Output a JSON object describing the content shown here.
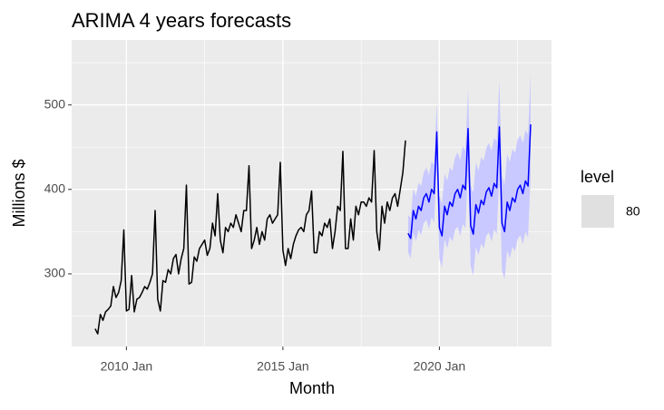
{
  "chart_data": {
    "type": "line",
    "title": "ARIMA 4 years forecasts",
    "x_label": "Month",
    "y_label": "Millions $",
    "x": [
      "2009 Jan",
      "2009 Feb",
      "2009 Mar",
      "2009 Apr",
      "2009 May",
      "2009 Jun",
      "2009 Jul",
      "2009 Aug",
      "2009 Sep",
      "2009 Oct",
      "2009 Nov",
      "2009 Dec",
      "2010 Jan",
      "2010 Feb",
      "2010 Mar",
      "2010 Apr",
      "2010 May",
      "2010 Jun",
      "2010 Jul",
      "2010 Aug",
      "2010 Sep",
      "2010 Oct",
      "2010 Nov",
      "2010 Dec",
      "2011 Jan",
      "2011 Feb",
      "2011 Mar",
      "2011 Apr",
      "2011 May",
      "2011 Jun",
      "2011 Jul",
      "2011 Aug",
      "2011 Sep",
      "2011 Oct",
      "2011 Nov",
      "2011 Dec",
      "2012 Jan",
      "2012 Feb",
      "2012 Mar",
      "2012 Apr",
      "2012 May",
      "2012 Jun",
      "2012 Jul",
      "2012 Aug",
      "2012 Sep",
      "2012 Oct",
      "2012 Nov",
      "2012 Dec",
      "2013 Jan",
      "2013 Feb",
      "2013 Mar",
      "2013 Apr",
      "2013 May",
      "2013 Jun",
      "2013 Jul",
      "2013 Aug",
      "2013 Sep",
      "2013 Oct",
      "2013 Nov",
      "2013 Dec",
      "2014 Jan",
      "2014 Feb",
      "2014 Mar",
      "2014 Apr",
      "2014 May",
      "2014 Jun",
      "2014 Jul",
      "2014 Aug",
      "2014 Sep",
      "2014 Oct",
      "2014 Nov",
      "2014 Dec",
      "2015 Jan",
      "2015 Feb",
      "2015 Mar",
      "2015 Apr",
      "2015 May",
      "2015 Jun",
      "2015 Jul",
      "2015 Aug",
      "2015 Sep",
      "2015 Oct",
      "2015 Nov",
      "2015 Dec",
      "2016 Jan",
      "2016 Feb",
      "2016 Mar",
      "2016 Apr",
      "2016 May",
      "2016 Jun",
      "2016 Jul",
      "2016 Aug",
      "2016 Sep",
      "2016 Oct",
      "2016 Nov",
      "2016 Dec",
      "2017 Jan",
      "2017 Feb",
      "2017 Mar",
      "2017 Apr",
      "2017 May",
      "2017 Jun",
      "2017 Jul",
      "2017 Aug",
      "2017 Sep",
      "2017 Oct",
      "2017 Nov",
      "2017 Dec",
      "2018 Jan",
      "2018 Feb",
      "2018 Mar",
      "2018 Apr",
      "2018 May",
      "2018 Jun",
      "2018 Jul",
      "2018 Aug",
      "2018 Sep",
      "2018 Oct",
      "2018 Nov",
      "2018 Dec",
      "2019 Jan",
      "2019 Feb",
      "2019 Mar",
      "2019 Apr",
      "2019 May",
      "2019 Jun",
      "2019 Jul",
      "2019 Aug",
      "2019 Sep",
      "2019 Oct",
      "2019 Nov",
      "2019 Dec",
      "2020 Jan",
      "2020 Feb",
      "2020 Mar",
      "2020 Apr",
      "2020 May",
      "2020 Jun",
      "2020 Jul",
      "2020 Aug",
      "2020 Sep",
      "2020 Oct",
      "2020 Nov",
      "2020 Dec",
      "2021 Jan",
      "2021 Feb",
      "2021 Mar",
      "2021 Apr",
      "2021 May",
      "2021 Jun",
      "2021 Jul",
      "2021 Aug",
      "2021 Sep",
      "2021 Oct",
      "2021 Nov",
      "2021 Dec",
      "2022 Jan",
      "2022 Feb",
      "2022 Mar",
      "2022 Apr",
      "2022 May",
      "2022 Jun",
      "2022 Jul",
      "2022 Aug",
      "2022 Sep",
      "2022 Oct",
      "2022 Nov",
      "2022 Dec"
    ],
    "series": [
      {
        "color": "#000000",
        "values": [
          235,
          229,
          252,
          245,
          255,
          258,
          262,
          285,
          272,
          278,
          292,
          352,
          256,
          258,
          298,
          255,
          270,
          272,
          278,
          285,
          282,
          290,
          300,
          375,
          270,
          256,
          292,
          290,
          305,
          300,
          318,
          323,
          300,
          318,
          330,
          405,
          288,
          290,
          320,
          315,
          330,
          335,
          340,
          322,
          330,
          360,
          345,
          395,
          340,
          325,
          355,
          350,
          360,
          355,
          370,
          360,
          350,
          375,
          375,
          428,
          330,
          340,
          355,
          335,
          350,
          340,
          365,
          370,
          360,
          365,
          370,
          432,
          328,
          310,
          330,
          318,
          335,
          345,
          352,
          355,
          350,
          370,
          375,
          398,
          325,
          325,
          350,
          345,
          360,
          355,
          365,
          330,
          350,
          380,
          375,
          445,
          330,
          330,
          365,
          340,
          380,
          370,
          385,
          385,
          380,
          390,
          385,
          446,
          350,
          328,
          380,
          360,
          385,
          375,
          390,
          395,
          380,
          400,
          420,
          458,
          null,
          null,
          null,
          null,
          null,
          null,
          null,
          null,
          null,
          null,
          null,
          null,
          null,
          null,
          null,
          null,
          null,
          null,
          null,
          null,
          null,
          null,
          null,
          null,
          null,
          null,
          null,
          null,
          null,
          null,
          null,
          null,
          null,
          null,
          null,
          null,
          null,
          null,
          null,
          null,
          null,
          null,
          null,
          null,
          null,
          null,
          null,
          null
        ]
      },
      {
        "color": "#0000ff",
        "band_color": "#c9c9ff",
        "values": [
          null,
          null,
          null,
          null,
          null,
          null,
          null,
          null,
          null,
          null,
          null,
          null,
          null,
          null,
          null,
          null,
          null,
          null,
          null,
          null,
          null,
          null,
          null,
          null,
          null,
          null,
          null,
          null,
          null,
          null,
          null,
          null,
          null,
          null,
          null,
          null,
          null,
          null,
          null,
          null,
          null,
          null,
          null,
          null,
          null,
          null,
          null,
          null,
          null,
          null,
          null,
          null,
          null,
          null,
          null,
          null,
          null,
          null,
          null,
          null,
          null,
          null,
          null,
          null,
          null,
          null,
          null,
          null,
          null,
          null,
          null,
          null,
          null,
          null,
          null,
          null,
          null,
          null,
          null,
          null,
          null,
          null,
          null,
          null,
          null,
          null,
          null,
          null,
          null,
          null,
          null,
          null,
          null,
          null,
          null,
          null,
          null,
          null,
          null,
          null,
          null,
          null,
          null,
          null,
          null,
          null,
          null,
          null,
          null,
          null,
          null,
          null,
          null,
          null,
          null,
          null,
          null,
          null,
          null,
          null,
          348,
          342,
          375,
          365,
          380,
          375,
          390,
          395,
          385,
          400,
          395,
          468,
          355,
          345,
          380,
          370,
          385,
          380,
          395,
          400,
          390,
          405,
          400,
          472,
          357,
          347,
          382,
          372,
          387,
          382,
          397,
          402,
          392,
          407,
          402,
          474,
          360,
          350,
          385,
          375,
          390,
          385,
          400,
          405,
          395,
          410,
          404,
          477
        ],
        "lower": [
          null,
          null,
          null,
          null,
          null,
          null,
          null,
          null,
          null,
          null,
          null,
          null,
          null,
          null,
          null,
          null,
          null,
          null,
          null,
          null,
          null,
          null,
          null,
          null,
          null,
          null,
          null,
          null,
          null,
          null,
          null,
          null,
          null,
          null,
          null,
          null,
          null,
          null,
          null,
          null,
          null,
          null,
          null,
          null,
          null,
          null,
          null,
          null,
          null,
          null,
          null,
          null,
          null,
          null,
          null,
          null,
          null,
          null,
          null,
          null,
          null,
          null,
          null,
          null,
          null,
          null,
          null,
          null,
          null,
          null,
          null,
          null,
          null,
          null,
          null,
          null,
          null,
          null,
          null,
          null,
          null,
          null,
          null,
          null,
          null,
          null,
          null,
          null,
          null,
          null,
          null,
          null,
          null,
          null,
          null,
          null,
          null,
          null,
          null,
          null,
          null,
          null,
          null,
          null,
          null,
          null,
          null,
          null,
          null,
          null,
          null,
          null,
          null,
          null,
          null,
          null,
          null,
          null,
          null,
          null,
          326,
          318,
          349,
          338,
          352,
          346,
          360,
          364,
          353,
          367,
          361,
          433,
          318,
          307,
          341,
          330,
          344,
          338,
          352,
          356,
          345,
          359,
          354,
          425,
          309,
          298,
          332,
          322,
          336,
          330,
          345,
          349,
          338,
          353,
          347,
          419,
          304,
          294,
          328,
          318,
          332,
          327,
          341,
          346,
          335,
          350,
          343,
          416
        ],
        "upper": [
          null,
          null,
          null,
          null,
          null,
          null,
          null,
          null,
          null,
          null,
          null,
          null,
          null,
          null,
          null,
          null,
          null,
          null,
          null,
          null,
          null,
          null,
          null,
          null,
          null,
          null,
          null,
          null,
          null,
          null,
          null,
          null,
          null,
          null,
          null,
          null,
          null,
          null,
          null,
          null,
          null,
          null,
          null,
          null,
          null,
          null,
          null,
          null,
          null,
          null,
          null,
          null,
          null,
          null,
          null,
          null,
          null,
          null,
          null,
          null,
          null,
          null,
          null,
          null,
          null,
          null,
          null,
          null,
          null,
          null,
          null,
          null,
          null,
          null,
          null,
          null,
          null,
          null,
          null,
          null,
          null,
          null,
          null,
          null,
          null,
          null,
          null,
          null,
          null,
          null,
          null,
          null,
          null,
          null,
          null,
          null,
          null,
          null,
          null,
          null,
          null,
          null,
          null,
          null,
          null,
          null,
          null,
          null,
          null,
          null,
          null,
          null,
          null,
          null,
          null,
          null,
          null,
          null,
          null,
          null,
          370,
          366,
          401,
          392,
          408,
          404,
          420,
          426,
          417,
          433,
          429,
          503,
          392,
          383,
          419,
          410,
          426,
          422,
          438,
          444,
          435,
          451,
          446,
          519,
          405,
          396,
          432,
          422,
          438,
          434,
          449,
          455,
          446,
          461,
          457,
          529,
          416,
          406,
          442,
          432,
          448,
          443,
          459,
          464,
          455,
          470,
          465,
          538
        ]
      }
    ],
    "xlim": [
      "2008 Apr",
      "2023 Aug"
    ],
    "xticks": [
      "2010 Jan",
      "2015 Jan",
      "2020 Jan"
    ],
    "ylim": [
      214,
      577
    ],
    "yticks": [
      300,
      400,
      500
    ],
    "grid": true,
    "legend": {
      "title": "level",
      "entries": [
        80
      ],
      "key_color": "#e0e0e0"
    }
  }
}
